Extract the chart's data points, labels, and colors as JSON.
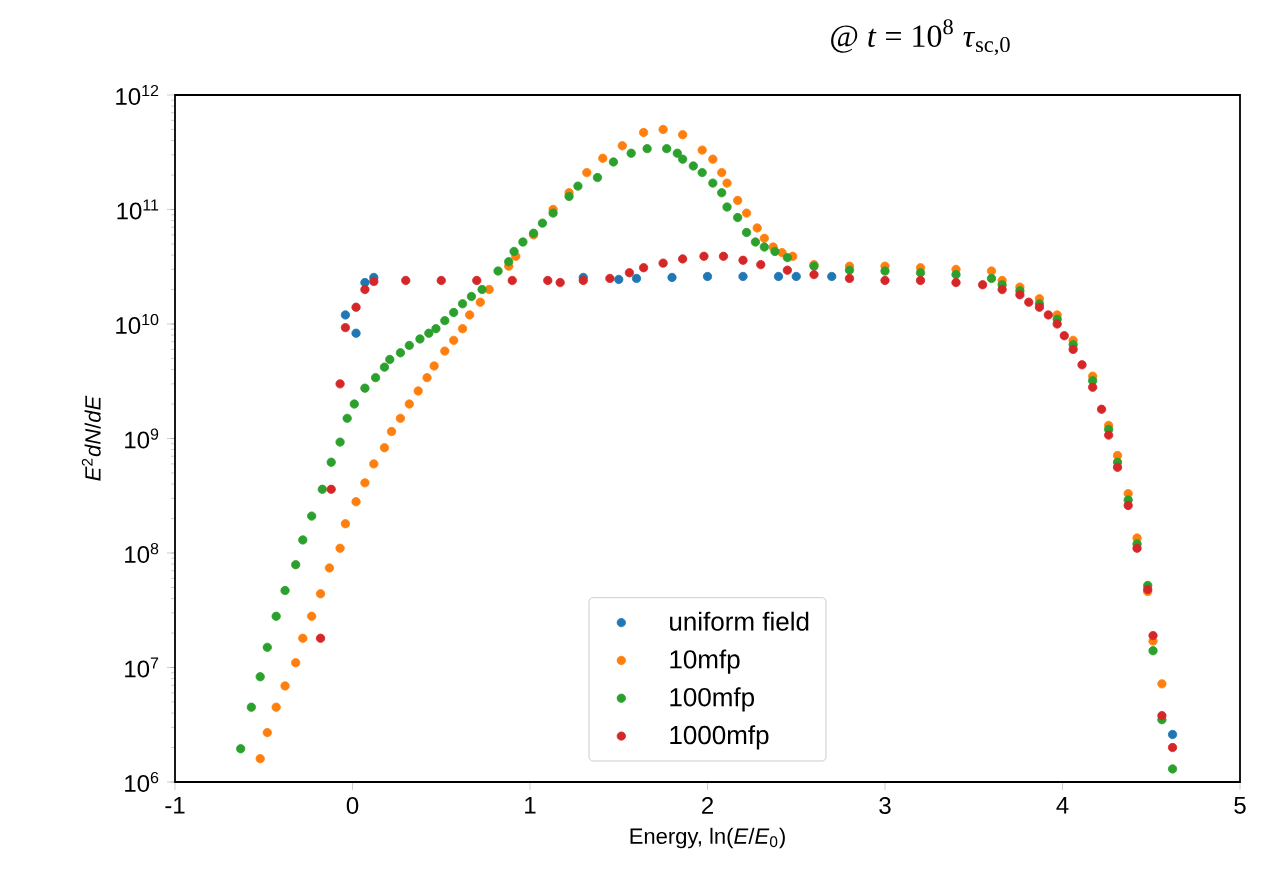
{
  "chart_data": {
    "type": "scatter",
    "title": "@ *t* = 10$^{8}$ *τ*$_{sc,0}$",
    "xlabel": "Energy, ln(*E*/*E*$_{0}$)",
    "ylabel": "*E*$^{2}$*dN*/*dE*",
    "log": "y",
    "marker": "circle",
    "legend": "bottom",
    "xlim": [
      -1,
      5
    ],
    "xticks": [
      -1,
      0,
      1,
      2,
      3,
      4,
      5
    ],
    "ylim": [
      1000000.0,
      1000000000000.0
    ],
    "yticks": [
      {
        "value": 1000000.0,
        "label": "10$^{6}$"
      },
      {
        "value": 10000000.0,
        "label": "10$^{7}$"
      },
      {
        "value": 100000000.0,
        "label": "10$^{8}$"
      },
      {
        "value": 1000000000.0,
        "label": "10$^{9}$"
      },
      {
        "value": 10000000000.0,
        "label": "10$^{10}$"
      },
      {
        "value": 100000000000.0,
        "label": "10$^{11}$"
      },
      {
        "value": 1000000000000.0,
        "label": "10$^{12}$"
      }
    ],
    "series": [
      {
        "name": "uniform field",
        "color": "#1f77b4",
        "x": [
          -0.04,
          0.02,
          0.07,
          0.12,
          0.3,
          0.5,
          0.7,
          0.9,
          1.1,
          1.3,
          1.5,
          1.6,
          1.8,
          2.0,
          2.2,
          2.4,
          2.5,
          2.7,
          4.62
        ],
        "values": [
          12000000000.0,
          8300000000.0,
          23000000000.0,
          25500000000.0,
          null,
          null,
          null,
          null,
          null,
          25500000000.0,
          24500000000.0,
          25000000000.0,
          25500000000.0,
          26000000000.0,
          26000000000.0,
          26000000000.0,
          26000000000.0,
          26000000000.0,
          2600000.0
        ]
      },
      {
        "name": "10mfp",
        "color": "#ff7f0e",
        "x": [
          -0.52,
          -0.48,
          -0.43,
          -0.38,
          -0.32,
          -0.28,
          -0.23,
          -0.18,
          -0.13,
          -0.07,
          -0.04,
          0.02,
          0.07,
          0.12,
          0.18,
          0.22,
          0.27,
          0.32,
          0.37,
          0.42,
          0.46,
          0.52,
          0.57,
          0.62,
          0.66,
          0.72,
          0.77,
          0.88,
          0.92,
          1.02,
          1.13,
          1.22,
          1.32,
          1.41,
          1.52,
          1.64,
          1.75,
          1.86,
          1.97,
          2.03,
          2.08,
          2.11,
          2.17,
          2.22,
          2.28,
          2.32,
          2.37,
          2.42,
          2.48,
          2.6,
          2.8,
          3.0,
          3.2,
          3.4,
          3.6,
          3.66,
          3.76,
          3.87,
          3.97,
          4.06,
          4.17,
          4.26,
          4.31,
          4.37,
          4.42,
          4.48,
          4.51,
          4.56
        ],
        "values": [
          1600000.0,
          2700000.0,
          4500000.0,
          6900000.0,
          11000000.0,
          18000000.0,
          28000000.0,
          44000000.0,
          74000000.0,
          110000000.0,
          180000000.0,
          280000000.0,
          410000000.0,
          600000000.0,
          830000000.0,
          1150000000.0,
          1500000000.0,
          2000000000.0,
          2600000000.0,
          3400000000.0,
          4300000000.0,
          5800000000.0,
          7200000000.0,
          9100000000.0,
          12000000000.0,
          15500000000.0,
          20000000000.0,
          32000000000.0,
          39000000000.0,
          60000000000.0,
          100000000000.0,
          140000000000.0,
          210000000000.0,
          280000000000.0,
          360000000000.0,
          470000000000.0,
          500000000000.0,
          450000000000.0,
          330000000000.0,
          275000000000.0,
          210000000000.0,
          170000000000.0,
          120000000000.0,
          93000000000.0,
          69000000000.0,
          56000000000.0,
          47000000000.0,
          42000000000.0,
          39000000000.0,
          33000000000.0,
          32000000000.0,
          32000000000.0,
          31000000000.0,
          30000000000.0,
          29000000000.0,
          24000000000.0,
          21000000000.0,
          16600000000.0,
          12000000000.0,
          7200000000.0,
          3500000000.0,
          1300000000.0,
          710000000.0,
          330000000.0,
          135000000.0,
          46000000.0,
          17000000.0,
          7200000.0
        ]
      },
      {
        "name": "100mfp",
        "color": "#2ca02c",
        "x": [
          -0.63,
          -0.57,
          -0.52,
          -0.48,
          -0.43,
          -0.38,
          -0.32,
          -0.28,
          -0.23,
          -0.17,
          -0.12,
          -0.07,
          -0.03,
          0.01,
          0.07,
          0.13,
          0.18,
          0.21,
          0.27,
          0.32,
          0.38,
          0.43,
          0.47,
          0.52,
          0.57,
          0.62,
          0.67,
          0.73,
          0.82,
          0.88,
          0.91,
          0.96,
          1.02,
          1.07,
          1.13,
          1.22,
          1.27,
          1.38,
          1.47,
          1.57,
          1.66,
          1.77,
          1.83,
          1.86,
          1.92,
          1.97,
          2.03,
          2.08,
          2.11,
          2.17,
          2.22,
          2.27,
          2.32,
          2.38,
          2.45,
          2.6,
          2.8,
          3.0,
          3.2,
          3.4,
          3.6,
          3.66,
          3.76,
          3.87,
          3.97,
          4.06,
          4.17,
          4.26,
          4.31,
          4.37,
          4.42,
          4.48,
          4.51,
          4.56,
          4.62
        ],
        "values": [
          1950000.0,
          4500000.0,
          8300000.0,
          15000000.0,
          28000000.0,
          47000000.0,
          79000000.0,
          130000000.0,
          210000000.0,
          360000000.0,
          620000000.0,
          930000000.0,
          1500000000.0,
          2000000000.0,
          2750000000.0,
          3400000000.0,
          4200000000.0,
          4900000000.0,
          5600000000.0,
          6500000000.0,
          7400000000.0,
          8300000000.0,
          9100000000.0,
          10700000000.0,
          12600000000.0,
          15000000000.0,
          17400000000.0,
          20000000000.0,
          29000000000.0,
          35000000000.0,
          43000000000.0,
          52000000000.0,
          62000000000.0,
          76000000000.0,
          93000000000.0,
          130000000000.0,
          160000000000.0,
          190000000000.0,
          260000000000.0,
          310000000000.0,
          340000000000.0,
          340000000000.0,
          310000000000.0,
          275000000000.0,
          240000000000.0,
          210000000000.0,
          170000000000.0,
          140000000000.0,
          105000000000.0,
          85000000000.0,
          63000000000.0,
          52000000000.0,
          47000000000.0,
          43000000000.0,
          38000000000.0,
          32000000000.0,
          29500000000.0,
          29000000000.0,
          28000000000.0,
          27000000000.0,
          25000000000.0,
          22000000000.0,
          19500000000.0,
          15000000000.0,
          11000000000.0,
          6600000000.0,
          3200000000.0,
          1200000000.0,
          620000000.0,
          290000000.0,
          120000000.0,
          52000000.0,
          14000000.0,
          3500000.0,
          1300000.0
        ]
      },
      {
        "name": "1000mfp",
        "color": "#d62728",
        "x": [
          -0.18,
          -0.12,
          -0.07,
          -0.04,
          0.02,
          0.07,
          0.12,
          0.3,
          0.5,
          0.7,
          0.9,
          1.1,
          1.17,
          1.3,
          1.45,
          1.56,
          1.64,
          1.75,
          1.86,
          1.98,
          2.09,
          2.2,
          2.3,
          2.45,
          2.6,
          2.8,
          3.0,
          3.2,
          3.4,
          3.55,
          3.66,
          3.76,
          3.81,
          3.87,
          3.92,
          3.97,
          4.01,
          4.06,
          4.11,
          4.17,
          4.22,
          4.26,
          4.31,
          4.37,
          4.42,
          4.48,
          4.51,
          4.56,
          4.62
        ],
        "values": [
          18000000.0,
          360000000.0,
          3000000000.0,
          9300000000.0,
          14000000000.0,
          20000000000.0,
          23500000000.0,
          24000000000.0,
          24000000000.0,
          24000000000.0,
          24000000000.0,
          24000000000.0,
          23000000000.0,
          24000000000.0,
          25000000000.0,
          28000000000.0,
          31000000000.0,
          34000000000.0,
          37000000000.0,
          39000000000.0,
          39000000000.0,
          36000000000.0,
          33000000000.0,
          29500000000.0,
          27000000000.0,
          25000000000.0,
          24000000000.0,
          24000000000.0,
          23000000000.0,
          22000000000.0,
          20000000000.0,
          18000000000.0,
          15500000000.0,
          14000000000.0,
          12000000000.0,
          10000000000.0,
          7900000000.0,
          6000000000.0,
          4400000000.0,
          2800000000.0,
          1800000000.0,
          1070000000.0,
          560000000.0,
          260000000.0,
          110000000.0,
          48000000.0,
          19000000.0,
          3800000.0,
          2000000.0
        ]
      }
    ]
  }
}
